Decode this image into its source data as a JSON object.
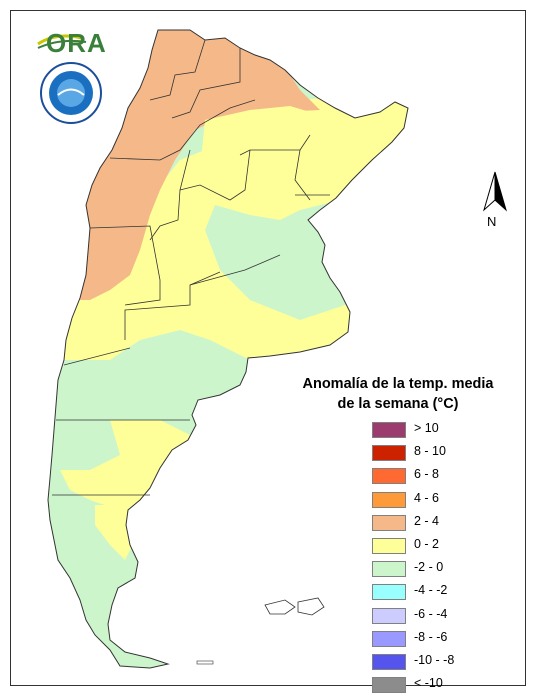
{
  "logo": {
    "text": "ORA"
  },
  "north_arrow": {
    "label": "N"
  },
  "legend": {
    "title_line1": "Anomalía de la temp. media",
    "title_line2": "de la semana (°C)",
    "items": [
      {
        "label": "> 10",
        "color": "#9b3b6e"
      },
      {
        "label": "8 - 10",
        "color": "#cc2200"
      },
      {
        "label": "6 - 8",
        "color": "#ff6a33"
      },
      {
        "label": "4 - 6",
        "color": "#ff9a3a"
      },
      {
        "label": "2 - 4",
        "color": "#f5b888"
      },
      {
        "label": "0 - 2",
        "color": "#ffff99"
      },
      {
        "label": "-2 - 0",
        "color": "#ccf5cc"
      },
      {
        "label": "-4 - -2",
        "color": "#99ffff"
      },
      {
        "label": "-6 - -4",
        "color": "#ccccff"
      },
      {
        "label": "-8 - -6",
        "color": "#9999ff"
      },
      {
        "label": "-10 - -8",
        "color": "#5555ee"
      },
      {
        "label": "< -10",
        "color": "#8c8c8c"
      }
    ]
  },
  "map_colors": {
    "warm": "#f5b888",
    "neutral_warm": "#ffff99",
    "cool": "#ccf5cc",
    "border": "#333333"
  }
}
